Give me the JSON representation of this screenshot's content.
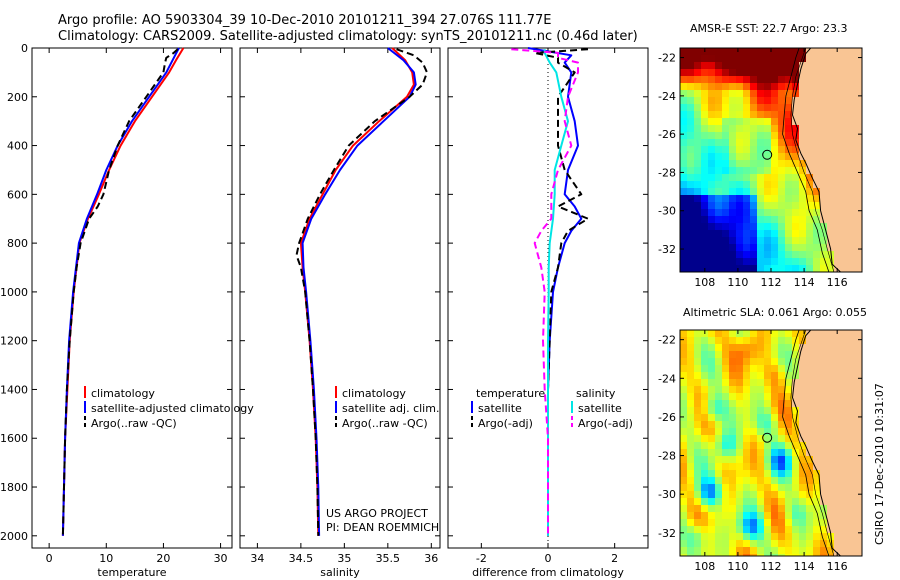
{
  "title_line1": "Argo profile: AO 5903304_39 10-Dec-2010 20101211_394 27.076S 111.77E",
  "title_line2": "Climatology: CARS2009. Satellite-adjusted climatology: synTS_20101211.nc (0.46d later)",
  "stamp": "CSIRO 17-Dec-2010 10:31:07",
  "colors": {
    "clim": "#ff0000",
    "sat": "#0000ff",
    "argo": "#000000",
    "sat_sal": "#00e5e5",
    "argo_sal": "#ff00ff"
  },
  "y_ticks": [
    "0",
    "200",
    "400",
    "600",
    "800",
    "1000",
    "1200",
    "1400",
    "1600",
    "1800",
    "2000"
  ],
  "chart_data": [
    {
      "type": "line",
      "name": "temperature panel",
      "xlabel": "temperature",
      "xlim": [
        -3,
        32
      ],
      "ylim": [
        2050,
        0
      ],
      "x_ticks": [
        "0",
        "10",
        "20",
        "30"
      ],
      "legend": [
        "climatology",
        "satellite-adjusted climatology",
        "Argo(..raw -QC)"
      ],
      "series": [
        {
          "name": "climatology",
          "pressure": [
            0,
            50,
            100,
            200,
            300,
            400,
            500,
            600,
            700,
            800,
            1000,
            1200,
            1400,
            1600,
            1800,
            2000
          ],
          "values": [
            23.5,
            22.2,
            21,
            18,
            15,
            12.5,
            10.5,
            8.7,
            6.8,
            5.3,
            4.3,
            3.6,
            3.2,
            2.8,
            2.6,
            2.4
          ]
        },
        {
          "name": "satellite-adjusted climatology",
          "pressure": [
            0,
            50,
            100,
            200,
            300,
            400,
            500,
            600,
            700,
            800,
            1000,
            1200,
            1400,
            1600,
            1800,
            2000
          ],
          "values": [
            22.7,
            21.6,
            20.5,
            17.5,
            14.5,
            12,
            10,
            8.4,
            6.6,
            5.2,
            4.2,
            3.5,
            3.1,
            2.8,
            2.6,
            2.4
          ]
        },
        {
          "name": "Argo(..raw -QC)",
          "pressure": [
            5,
            20,
            40,
            60,
            100,
            200,
            300,
            400,
            500,
            600,
            650,
            700,
            800,
            900,
            1000,
            1200,
            1400,
            1600,
            1800,
            2000
          ],
          "values": [
            22.5,
            21.8,
            20.5,
            20.3,
            20,
            17,
            14,
            12,
            10.5,
            9.5,
            8.5,
            7,
            5.5,
            4.8,
            4.3,
            3.6,
            3.1,
            2.8,
            2.6,
            2.4
          ]
        }
      ]
    },
    {
      "type": "line",
      "name": "salinity panel",
      "xlabel": "salinity",
      "xlim": [
        33.8,
        36.1
      ],
      "ylim": [
        2050,
        0
      ],
      "x_ticks": [
        "34",
        "34.5",
        "35",
        "35.5",
        "36"
      ],
      "legend": [
        "climatology",
        "satellite adj. clim.",
        "Argo(..raw -QC)"
      ],
      "annotation": [
        "US ARGO PROJECT",
        "PI: DEAN ROEMMICH"
      ],
      "series": [
        {
          "name": "climatology",
          "pressure": [
            0,
            50,
            100,
            150,
            200,
            300,
            400,
            500,
            600,
            700,
            800,
            900,
            1000,
            1200,
            1400,
            1600,
            1800,
            2000
          ],
          "values": [
            35.55,
            35.7,
            35.78,
            35.8,
            35.72,
            35.4,
            35.1,
            34.9,
            34.75,
            34.6,
            34.5,
            34.52,
            34.55,
            34.6,
            34.64,
            34.67,
            34.69,
            34.7
          ]
        },
        {
          "name": "satellite adj. clim.",
          "pressure": [
            0,
            50,
            100,
            150,
            200,
            300,
            400,
            500,
            600,
            700,
            800,
            900,
            1000,
            1200,
            1400,
            1600,
            1800,
            2000
          ],
          "values": [
            35.5,
            35.68,
            35.8,
            35.82,
            35.75,
            35.45,
            35.15,
            34.95,
            34.78,
            34.62,
            34.52,
            34.53,
            34.56,
            34.61,
            34.65,
            34.68,
            34.7,
            34.71
          ]
        },
        {
          "name": "Argo(..raw -QC)",
          "pressure": [
            5,
            30,
            60,
            100,
            150,
            200,
            300,
            400,
            500,
            600,
            700,
            800,
            850,
            900,
            1000,
            1200,
            1400,
            1600,
            1800,
            2000
          ],
          "values": [
            35.6,
            35.8,
            35.9,
            35.95,
            35.9,
            35.75,
            35.35,
            35.05,
            34.88,
            34.72,
            34.58,
            34.48,
            34.45,
            34.5,
            34.55,
            34.6,
            34.64,
            34.67,
            34.69,
            34.7
          ]
        }
      ]
    },
    {
      "type": "line",
      "name": "difference panel",
      "xlabel": "difference from climatology",
      "xlim": [
        -3,
        3
      ],
      "ylim": [
        2050,
        0
      ],
      "x_ticks": [
        "-2",
        "0",
        "2"
      ],
      "legend": [
        "temperature",
        "satellite",
        "Argo(-adj)",
        "salinity",
        "satellite",
        "Argo(-adj)"
      ],
      "series": [
        {
          "name": "temperature satellite",
          "pressure": [
            0,
            30,
            60,
            100,
            200,
            300,
            400,
            500,
            600,
            650,
            700,
            750,
            800,
            900,
            1000,
            1200,
            1400,
            1600,
            1800,
            2000
          ],
          "values": [
            -0.6,
            0.7,
            0.5,
            0.7,
            0.6,
            0.8,
            0.9,
            0.6,
            0.5,
            0.8,
            1.0,
            0.7,
            0.5,
            0.3,
            0.15,
            0.05,
            0,
            0,
            0,
            0
          ]
        },
        {
          "name": "temperature Argo(-adj)",
          "pressure": [
            5,
            20,
            40,
            60,
            100,
            200,
            300,
            400,
            500,
            600,
            650,
            700,
            750,
            800,
            900,
            1000,
            1200,
            1400,
            1600,
            1800,
            2000
          ],
          "values": [
            1.2,
            -0.4,
            0.3,
            0.3,
            0.8,
            0.3,
            0.3,
            0.3,
            0.5,
            1.0,
            0.3,
            1.2,
            0.6,
            0.4,
            0.3,
            0.1,
            0.05,
            0,
            0,
            0,
            0
          ]
        },
        {
          "name": "salinity satellite",
          "pressure": [
            5,
            20,
            60,
            100,
            200,
            300,
            400,
            500,
            600,
            700,
            800,
            900,
            1000,
            1200,
            1400,
            1600,
            1800,
            2000
          ],
          "values": [
            -0.1,
            -0.1,
            0.05,
            0.25,
            0.4,
            0.6,
            0.4,
            0.2,
            0.2,
            0.15,
            0.05,
            0.02,
            0.02,
            0,
            0,
            0,
            0,
            0
          ]
        },
        {
          "name": "salinity Argo(-adj)",
          "pressure": [
            5,
            20,
            40,
            60,
            100,
            200,
            300,
            400,
            500,
            600,
            700,
            750,
            800,
            900,
            1000,
            1200,
            1400,
            1600,
            1800,
            2000
          ],
          "values": [
            -1.1,
            0.3,
            0.3,
            0.9,
            0.9,
            0.6,
            0.5,
            0.7,
            0.3,
            0.1,
            0.1,
            -0.2,
            -0.4,
            -0.2,
            -0.1,
            -0.15,
            -0.1,
            0,
            0,
            0
          ]
        }
      ]
    },
    {
      "type": "heatmap",
      "name": "AMSR-E SST map",
      "title": "AMSR-E SST: 22.7  Argo: 23.3",
      "xlim": [
        106.5,
        117.5
      ],
      "ylim": [
        -33.2,
        -21.5
      ],
      "x_ticks": [
        "108",
        "110",
        "112",
        "114",
        "116"
      ],
      "y_ticks": [
        "-22",
        "-24",
        "-26",
        "-28",
        "-30",
        "-32"
      ],
      "profile_location": {
        "lon": 111.77,
        "lat": -27.076
      }
    },
    {
      "type": "heatmap",
      "name": "Altimetric SLA map",
      "title": "Altimetric SLA: 0.061  Argo: 0.055",
      "xlim": [
        106.5,
        117.5
      ],
      "ylim": [
        -33.2,
        -21.5
      ],
      "x_ticks": [
        "108",
        "110",
        "112",
        "114",
        "116"
      ],
      "y_ticks": [
        "-22",
        "-24",
        "-26",
        "-28",
        "-30",
        "-32"
      ],
      "profile_location": {
        "lon": 111.77,
        "lat": -27.076
      }
    }
  ]
}
